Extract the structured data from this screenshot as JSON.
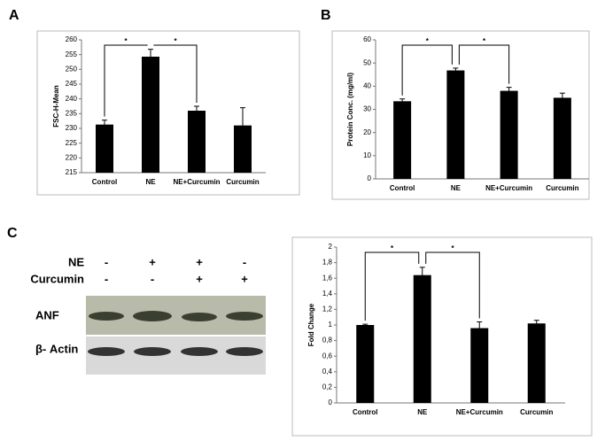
{
  "chart_data": [
    {
      "type": "bar",
      "panel": "A",
      "ylabel": "FSC-H-Mean",
      "categories": [
        "Control",
        "NE",
        "NE+Curcumin",
        "Curcumin"
      ],
      "values": [
        231.3,
        254.3,
        236,
        231
      ],
      "errors": [
        1.5,
        2.5,
        1.5,
        6
      ],
      "color": "#000000",
      "ylim": [
        215,
        260
      ],
      "yticks": [
        215,
        220,
        225,
        230,
        235,
        240,
        245,
        250,
        255,
        260
      ],
      "annotations": [
        {
          "text": "*",
          "between": [
            "Control",
            "NE"
          ]
        },
        {
          "text": "*",
          "between": [
            "NE",
            "NE+Curcumin"
          ]
        }
      ]
    },
    {
      "type": "bar",
      "panel": "B",
      "ylabel": "Protein Conc. (mg/ml)",
      "categories": [
        "Control",
        "NE",
        "NE+Curcumin",
        "Curcumin"
      ],
      "values": [
        33.5,
        46.8,
        38,
        35
      ],
      "errors": [
        1,
        1,
        1.5,
        2
      ],
      "color": "#000000",
      "ylim": [
        0,
        60
      ],
      "yticks": [
        0,
        10,
        20,
        30,
        40,
        50,
        60
      ],
      "annotations": [
        {
          "text": "*",
          "between": [
            "Control",
            "NE"
          ]
        },
        {
          "text": "*",
          "between": [
            "NE",
            "NE+Curcumin"
          ]
        }
      ]
    },
    {
      "type": "bar",
      "ylabel": "Fold Change",
      "categories": [
        "Control",
        "NE",
        "NE+Curcumin",
        "Curcumin"
      ],
      "values": [
        1.0,
        1.64,
        0.96,
        1.02
      ],
      "errors": [
        0.01,
        0.1,
        0.08,
        0.04
      ],
      "color": "#000000",
      "ylim": [
        0,
        2
      ],
      "yticks": [
        0,
        {
          "value": 0.2,
          "label": "0,2"
        },
        {
          "value": 0.4,
          "label": "0,4"
        },
        {
          "value": 0.6,
          "label": "0,6"
        },
        {
          "value": 0.8,
          "label": "0,8"
        },
        1,
        {
          "value": 1.2,
          "label": "1,2"
        },
        {
          "value": 1.4,
          "label": "1,4"
        },
        {
          "value": 1.6,
          "label": "1,6"
        },
        {
          "value": 1.8,
          "label": "1,8"
        },
        2
      ],
      "annotations": [
        {
          "text": "*",
          "between": [
            "Control",
            "NE"
          ]
        },
        {
          "text": "*",
          "between": [
            "NE",
            "NE+Curcumin"
          ]
        }
      ]
    }
  ],
  "blot": {
    "panel": "C",
    "rows": [
      {
        "label": "NE",
        "signs": [
          "-",
          "+",
          "+",
          "-"
        ]
      },
      {
        "label": "Curcumin",
        "signs": [
          "-",
          "-",
          "+",
          "+"
        ]
      }
    ],
    "bands": [
      "ANF",
      "β- Actin"
    ]
  }
}
